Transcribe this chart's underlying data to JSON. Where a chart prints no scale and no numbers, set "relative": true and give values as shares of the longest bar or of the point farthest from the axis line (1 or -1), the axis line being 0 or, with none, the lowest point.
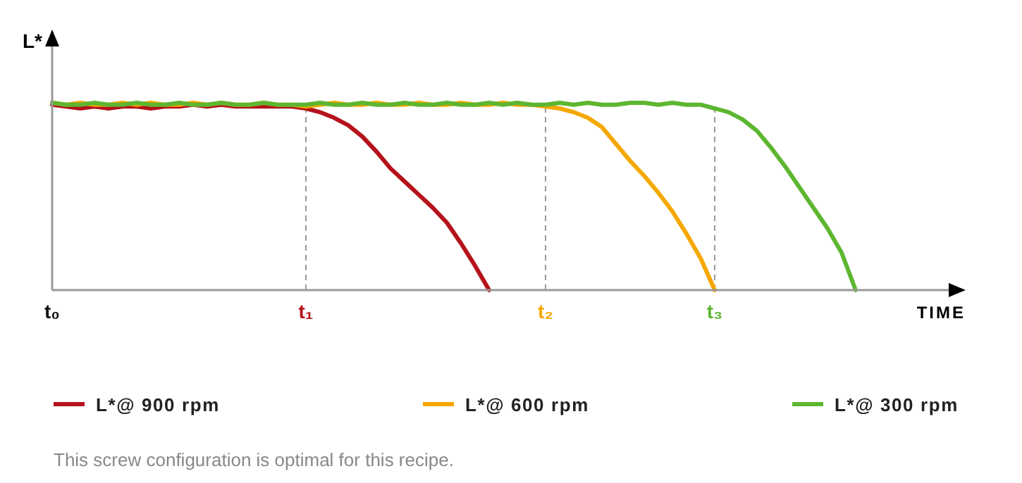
{
  "chart_data": {
    "type": "line",
    "relative": true,
    "ylabel": "L*",
    "xlabel": "TIME",
    "categories": [
      "t₀",
      null,
      null,
      null,
      null,
      null,
      null,
      null,
      null,
      null,
      null,
      null,
      null,
      null,
      null,
      null,
      null,
      null,
      "t₁",
      null,
      null,
      null,
      null,
      null,
      null,
      null,
      null,
      null,
      null,
      null,
      null,
      null,
      null,
      null,
      null,
      "t₂",
      null,
      null,
      null,
      null,
      null,
      null,
      null,
      null,
      null,
      null,
      null,
      "t₃",
      null,
      null,
      null,
      null,
      null,
      null,
      null,
      null,
      null,
      null,
      null,
      null,
      null,
      null,
      null,
      null,
      null
    ],
    "ref_lines": [
      {
        "axis": "x",
        "value": "t₁",
        "color": "#999999",
        "line_style": "dashed"
      },
      {
        "axis": "x",
        "value": "t₂",
        "color": "#999999",
        "line_style": "dashed"
      },
      {
        "axis": "x",
        "value": "t₃",
        "color": "#999999",
        "line_style": "dashed"
      }
    ],
    "legend": "bottom",
    "line_style": "solid",
    "annotations": [
      "This screw configuration is optimal for this recipe."
    ],
    "series": [
      {
        "name": "L*@ 900 rpm",
        "color": "#b5121b",
        "values": [
          0.99,
          0.98,
          0.97,
          0.98,
          0.97,
          0.98,
          0.98,
          0.97,
          0.98,
          0.98,
          0.99,
          0.98,
          0.99,
          0.98,
          0.98,
          0.98,
          0.98,
          0.98,
          0.97,
          0.95,
          0.92,
          0.88,
          0.82,
          0.74,
          0.65,
          0.58,
          0.51,
          0.44,
          0.36,
          0.25,
          0.13,
          0,
          null,
          null,
          null,
          null,
          null,
          null,
          null,
          null,
          null,
          null,
          null,
          null,
          null,
          null,
          null,
          null,
          null,
          null,
          null,
          null,
          null,
          null,
          null,
          null,
          null,
          null,
          null,
          null,
          null,
          null,
          null,
          null,
          null
        ]
      },
      {
        "name": "L*@ 600 rpm",
        "color": "#f5a800",
        "values": [
          1,
          0.99,
          1,
          0.99,
          0.99,
          1,
          0.99,
          1,
          0.99,
          0.99,
          1,
          0.99,
          1,
          0.99,
          0.99,
          1,
          0.99,
          0.99,
          0.98,
          0.99,
          1,
          0.99,
          0.99,
          1,
          0.99,
          0.99,
          1,
          0.99,
          0.99,
          1,
          0.99,
          0.99,
          1,
          0.99,
          0.99,
          0.98,
          0.97,
          0.95,
          0.92,
          0.87,
          0.78,
          0.69,
          0.61,
          0.52,
          0.42,
          0.3,
          0.17,
          0,
          null,
          null,
          null,
          null,
          null,
          null,
          null,
          null,
          null,
          null,
          null,
          null,
          null,
          null,
          null,
          null,
          null
        ]
      },
      {
        "name": "L*@ 300 rpm",
        "color": "#5db630",
        "values": [
          1,
          0.99,
          0.99,
          1,
          0.99,
          0.99,
          1,
          0.99,
          0.99,
          1,
          0.99,
          0.99,
          1,
          0.99,
          0.99,
          1,
          0.99,
          0.99,
          0.99,
          1,
          0.99,
          0.99,
          1,
          0.99,
          0.99,
          1,
          0.99,
          0.99,
          1,
          0.99,
          0.99,
          1,
          0.99,
          1,
          0.99,
          0.99,
          1,
          0.99,
          1,
          0.99,
          0.99,
          1,
          1,
          0.99,
          1,
          0.99,
          0.99,
          0.97,
          0.95,
          0.91,
          0.85,
          0.76,
          0.66,
          0.55,
          0.44,
          0.33,
          0.2,
          0,
          null,
          null,
          null,
          null,
          null,
          null,
          null
        ]
      }
    ]
  }
}
